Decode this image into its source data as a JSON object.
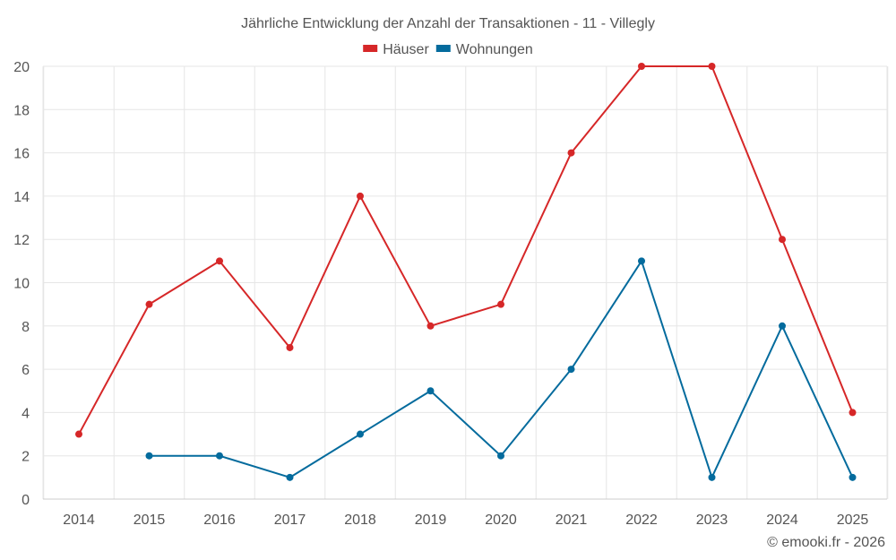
{
  "credit": "© emooki.fr - 2026",
  "chart_data": {
    "type": "line",
    "title": "Jährliche Entwicklung der Anzahl der Transaktionen - 11 - Villegly",
    "xlabel": "",
    "ylabel": "",
    "categories": [
      "2014",
      "2015",
      "2016",
      "2017",
      "2018",
      "2019",
      "2020",
      "2021",
      "2022",
      "2023",
      "2024",
      "2025"
    ],
    "ylim": [
      0,
      20
    ],
    "yticks": [
      0,
      2,
      4,
      6,
      8,
      10,
      12,
      14,
      16,
      18,
      20
    ],
    "grid": true,
    "legend_position": "top-center",
    "series": [
      {
        "name": "Häuser",
        "color": "#d62728",
        "values": [
          3,
          9,
          11,
          7,
          14,
          8,
          9,
          16,
          20,
          20,
          12,
          4
        ]
      },
      {
        "name": "Wohnungen",
        "color": "#046b9d",
        "values": [
          null,
          2,
          2,
          1,
          3,
          5,
          2,
          6,
          11,
          1,
          8,
          1
        ]
      }
    ]
  }
}
